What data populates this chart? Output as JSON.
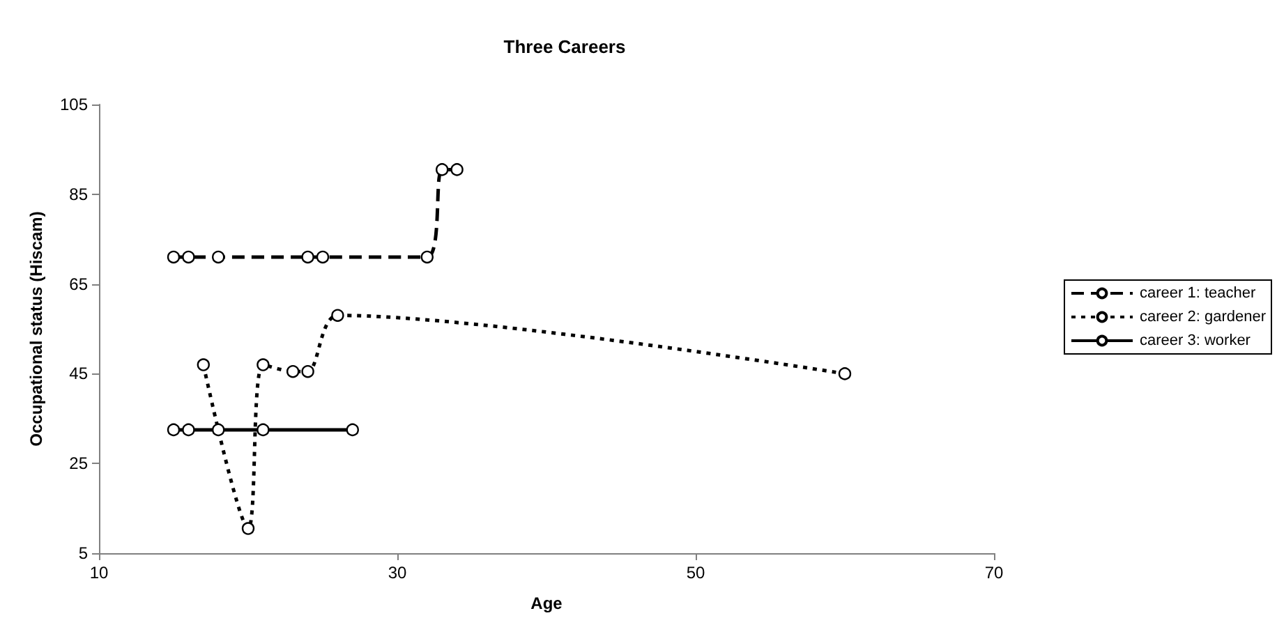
{
  "chart_data": {
    "type": "line",
    "title": "Three Careers",
    "xlabel": "Age",
    "ylabel": "Occupational status (Hiscam)",
    "xlim": [
      10,
      70
    ],
    "xticks": [
      10,
      30,
      50,
      70
    ],
    "ylim": [
      5,
      105
    ],
    "yticks": [
      5,
      25,
      45,
      65,
      85,
      105
    ],
    "grid": false,
    "legend": "right",
    "marker": "circle",
    "series": [
      {
        "name": "career 1: teacher",
        "color": "#000000",
        "line_style": "dashed",
        "x": [
          15,
          16,
          18,
          24,
          25,
          32,
          33,
          34
        ],
        "values": [
          71,
          71,
          71,
          71,
          71,
          71,
          90.5,
          90.5
        ]
      },
      {
        "name": "career 2: gardener",
        "color": "#000000",
        "line_style": "dotted",
        "x": [
          17,
          20,
          21,
          23,
          24,
          26,
          60
        ],
        "values": [
          47,
          10.5,
          47,
          45.5,
          45.5,
          58,
          45
        ]
      },
      {
        "name": "career 3: worker",
        "color": "#000000",
        "line_style": "solid",
        "x": [
          15,
          16,
          18,
          21,
          27
        ],
        "values": [
          32.5,
          32.5,
          32.5,
          32.5,
          32.5
        ]
      }
    ]
  }
}
